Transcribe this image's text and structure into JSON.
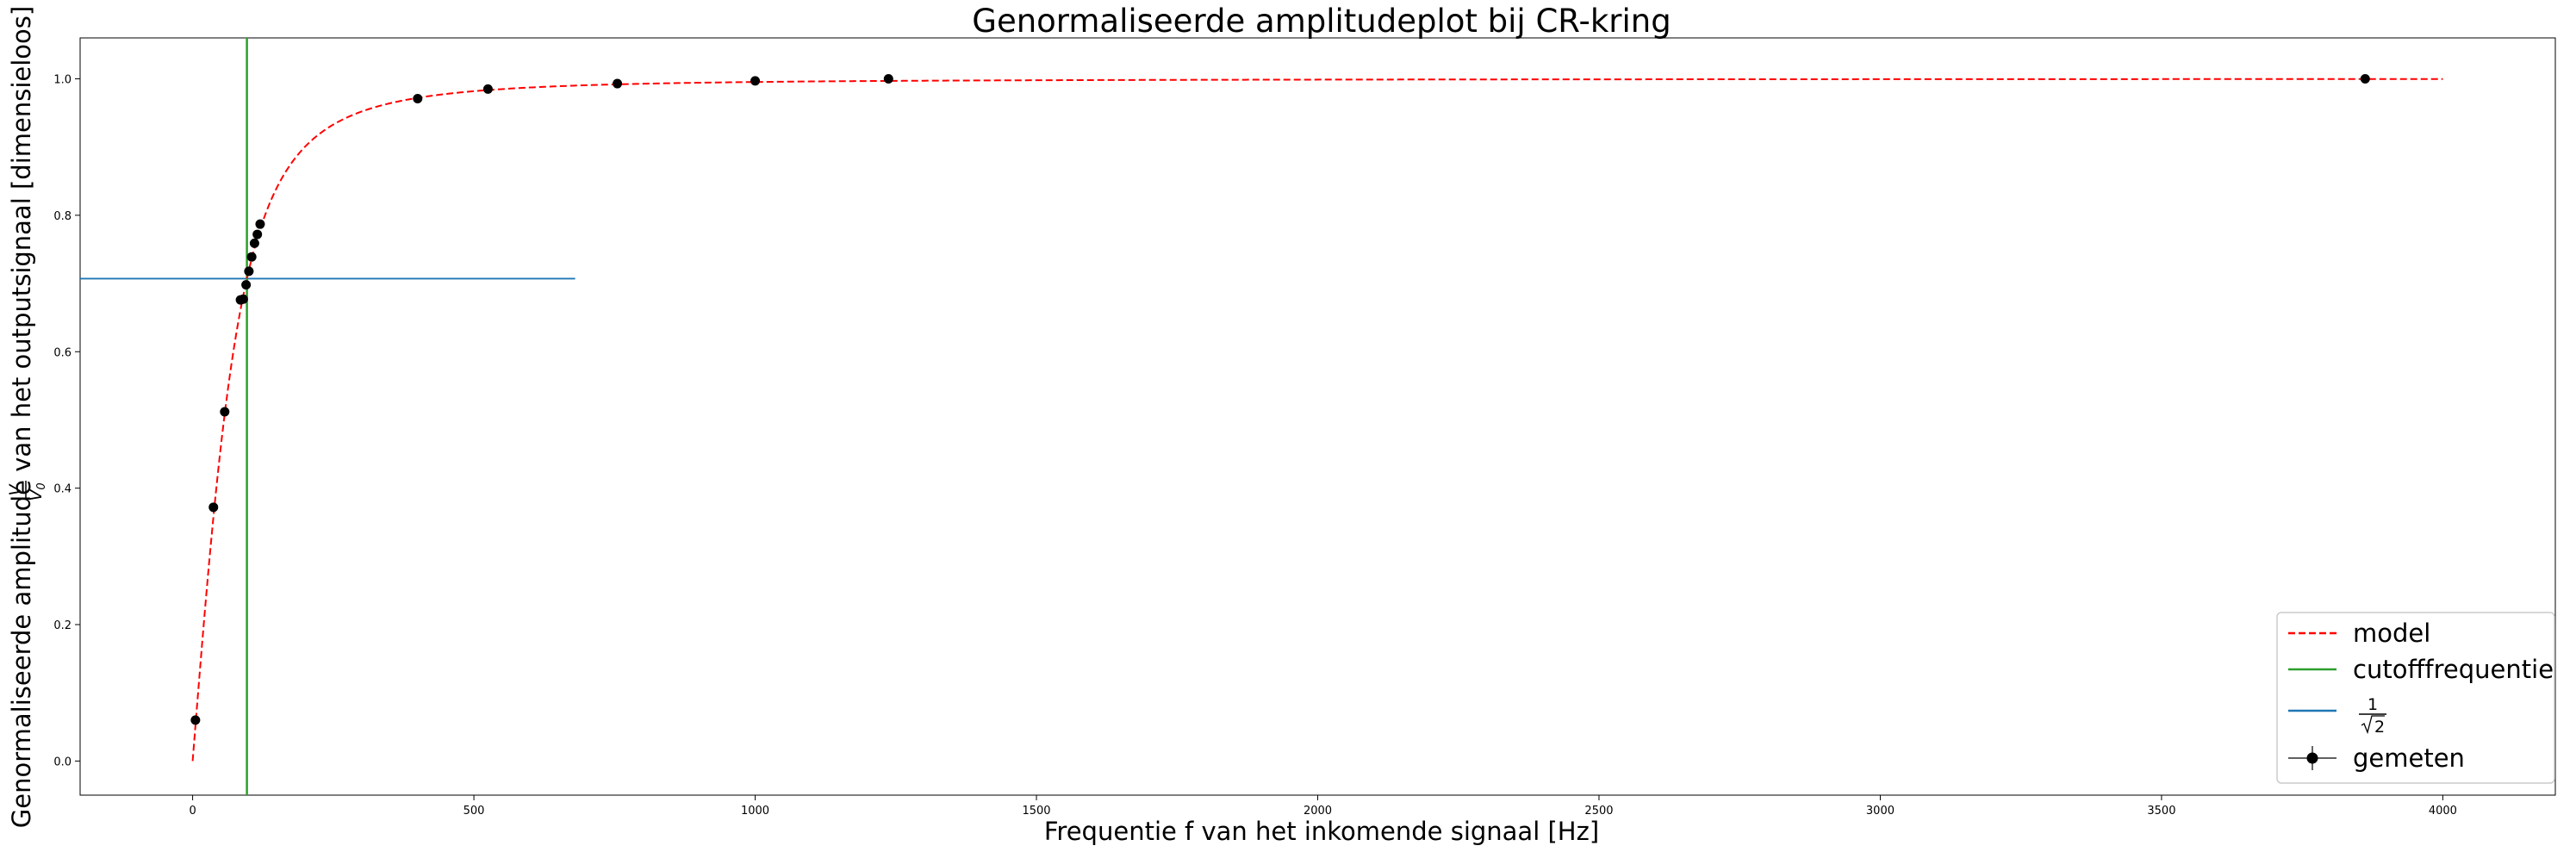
{
  "chart_data": {
    "type": "line",
    "title": "Genormaliseerde amplitudeplot bij CR-kring",
    "xlabel": "Frequentie f van het inkomende signaal [Hz]",
    "ylabel_prefix": "Genormaliseerde amplitude ",
    "ylabel_frac_num": "V",
    "ylabel_frac_den": "V",
    "ylabel_frac_den_sub": "0",
    "ylabel_suffix": " van het outputsignaal [dimensieloos]",
    "xlim": [
      -200,
      4200
    ],
    "ylim": [
      -0.05,
      1.06
    ],
    "xticks": [
      0,
      500,
      1000,
      1500,
      2000,
      2500,
      3000,
      3500,
      4000
    ],
    "xtick_labels": [
      "0",
      "500",
      "1000",
      "1500",
      "2000",
      "2500",
      "3000",
      "3500",
      "4000"
    ],
    "yticks": [
      0.0,
      0.2,
      0.4,
      0.6,
      0.8,
      1.0
    ],
    "ytick_labels": [
      "0.0",
      "0.2",
      "0.4",
      "0.6",
      "0.8",
      "1.0"
    ],
    "legend_position": "lower-right",
    "series": [
      {
        "name": "model",
        "kind": "dashed-line",
        "color": "#ff0000",
        "cutoff_hz": 96.5,
        "x_range": [
          0,
          4000
        ]
      },
      {
        "name": "cutofffrequentie",
        "kind": "vertical-line",
        "color": "#2ca02c",
        "x": 96.5
      },
      {
        "name_num": "1",
        "name_den": "2",
        "kind": "horizontal-line",
        "color": "#1f77b4",
        "y": 0.7071,
        "x_range": [
          -200,
          680
        ]
      },
      {
        "name": "gemeten",
        "kind": "errorbar-points",
        "color": "#000000",
        "x": [
          5,
          37,
          57,
          85,
          90,
          95,
          100,
          105,
          110,
          115,
          120,
          400,
          525,
          755,
          1000,
          1237,
          3862
        ],
        "y": [
          0.06,
          0.372,
          0.512,
          0.676,
          0.677,
          0.698,
          0.718,
          0.739,
          0.759,
          0.772,
          0.787,
          0.971,
          0.985,
          0.993,
          0.997,
          1.0,
          1.0
        ]
      }
    ]
  }
}
